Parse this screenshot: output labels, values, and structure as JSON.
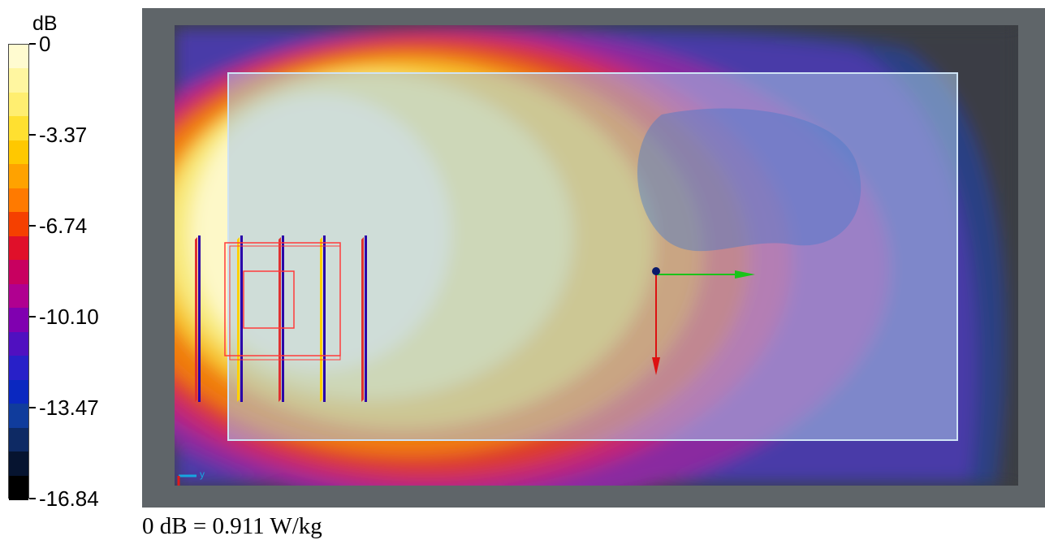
{
  "chart_data": {
    "type": "heatmap",
    "colorbar": {
      "unit": "dB",
      "ticks": [
        "0",
        "-3.37",
        "-6.74",
        "-10.10",
        "-13.47",
        "-16.84"
      ],
      "range": [
        -16.84,
        0
      ],
      "colors": [
        "#fffbd0",
        "#fff6a0",
        "#ffee70",
        "#ffe030",
        "#ffc800",
        "#ffa200",
        "#ff7a00",
        "#f54000",
        "#e0102a",
        "#c80060",
        "#b00090",
        "#8000b0",
        "#5010c0",
        "#2820c8",
        "#0a28c0",
        "#103c9c",
        "#0e2a64",
        "#061430",
        "#000000"
      ]
    },
    "note": "0 dB = 0.911 W/kg",
    "axis_indicator": {
      "y": "y",
      "z": "z"
    }
  }
}
